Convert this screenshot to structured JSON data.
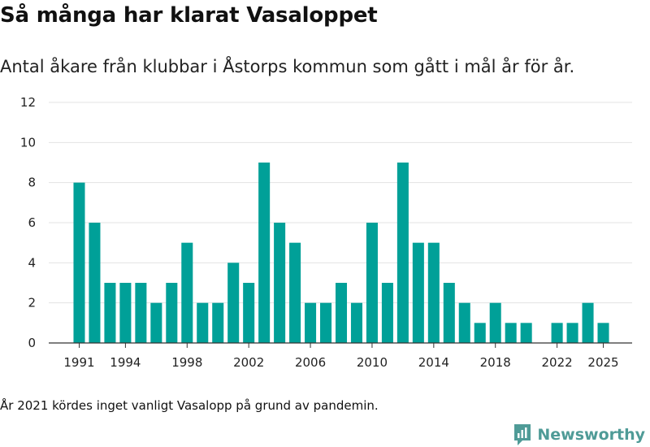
{
  "header": {
    "title": "Så många har klarat Vasaloppet",
    "subtitle": "Antal åkare från klubbar i Åstorps kommun som gått i mål år för år."
  },
  "footer": {
    "note": "År 2021 kördes inget vanligt Vasalopp på grund av pandemin.",
    "brand": "Newsworthy"
  },
  "colors": {
    "bar": "#00a098",
    "grid": "#e3e3e3",
    "axis": "#333333",
    "brand": "#4f9b97"
  },
  "chart_data": {
    "type": "bar",
    "title": "Så många har klarat Vasaloppet",
    "xlabel": "",
    "ylabel": "",
    "ylim": [
      0,
      12
    ],
    "yticks": [
      0,
      2,
      4,
      6,
      8,
      10,
      12
    ],
    "xticks": [
      1991,
      1994,
      1998,
      2002,
      2006,
      2010,
      2014,
      2018,
      2022,
      2025
    ],
    "grid": true,
    "legend": "none",
    "categories": [
      1991,
      1992,
      1993,
      1994,
      1995,
      1996,
      1997,
      1998,
      1999,
      2000,
      2001,
      2002,
      2003,
      2004,
      2005,
      2006,
      2007,
      2008,
      2009,
      2010,
      2011,
      2012,
      2013,
      2014,
      2015,
      2016,
      2017,
      2018,
      2019,
      2020,
      2021,
      2022,
      2023,
      2024,
      2025
    ],
    "values": [
      8,
      6,
      3,
      3,
      3,
      2,
      3,
      5,
      2,
      2,
      4,
      3,
      9,
      6,
      5,
      2,
      2,
      3,
      2,
      6,
      3,
      9,
      5,
      5,
      3,
      2,
      1,
      2,
      1,
      1,
      0,
      1,
      1,
      2,
      1
    ]
  }
}
